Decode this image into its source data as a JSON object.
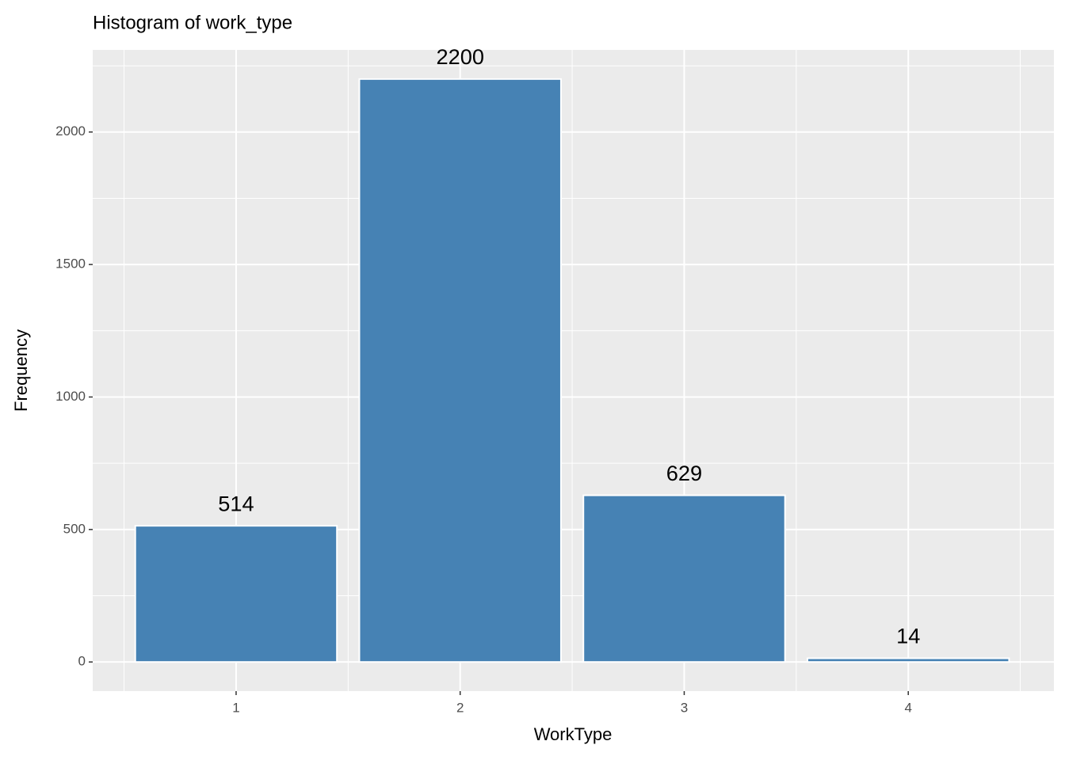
{
  "chart_data": {
    "type": "bar",
    "title": "Histogram of work_type",
    "x_label": "WorkType",
    "y_label": "Frequency",
    "x": [
      1,
      2,
      3,
      4
    ],
    "values": [
      514,
      2200,
      629,
      14
    ],
    "color": "#4682b4",
    "xlim": [
      0.36,
      4.65
    ],
    "xticks": [
      1,
      2,
      3,
      4
    ],
    "ylim": [
      -110,
      2310
    ],
    "yticks": [
      0,
      500,
      1000,
      1500,
      2000
    ],
    "grid": true
  }
}
